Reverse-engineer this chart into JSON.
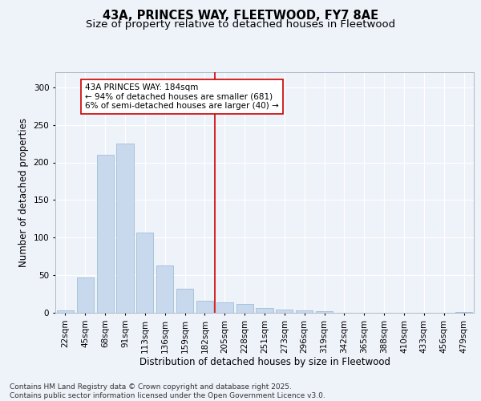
{
  "title": "43A, PRINCES WAY, FLEETWOOD, FY7 8AE",
  "subtitle": "Size of property relative to detached houses in Fleetwood",
  "xlabel": "Distribution of detached houses by size in Fleetwood",
  "ylabel": "Number of detached properties",
  "categories": [
    "22sqm",
    "45sqm",
    "68sqm",
    "91sqm",
    "113sqm",
    "136sqm",
    "159sqm",
    "182sqm",
    "205sqm",
    "228sqm",
    "251sqm",
    "273sqm",
    "296sqm",
    "319sqm",
    "342sqm",
    "365sqm",
    "388sqm",
    "410sqm",
    "433sqm",
    "456sqm",
    "479sqm"
  ],
  "values": [
    3,
    47,
    210,
    225,
    107,
    63,
    32,
    16,
    14,
    12,
    6,
    4,
    3,
    2,
    0,
    0,
    0,
    0,
    0,
    0,
    1
  ],
  "bar_color": "#c8d9ee",
  "bar_edgecolor": "#a0bdd8",
  "vline_x_index": 7,
  "vline_color": "#cc0000",
  "annotation_text": "43A PRINCES WAY: 184sqm\n← 94% of detached houses are smaller (681)\n6% of semi-detached houses are larger (40) →",
  "ylim": [
    0,
    320
  ],
  "yticks": [
    0,
    50,
    100,
    150,
    200,
    250,
    300
  ],
  "background_color": "#eef2f9",
  "grid_color": "#ffffff",
  "footer_line1": "Contains HM Land Registry data © Crown copyright and database right 2025.",
  "footer_line2": "Contains public sector information licensed under the Open Government Licence v3.0.",
  "title_fontsize": 10.5,
  "subtitle_fontsize": 9.5,
  "axis_label_fontsize": 8.5,
  "tick_fontsize": 7.5,
  "annotation_fontsize": 7.5,
  "footer_fontsize": 6.5
}
